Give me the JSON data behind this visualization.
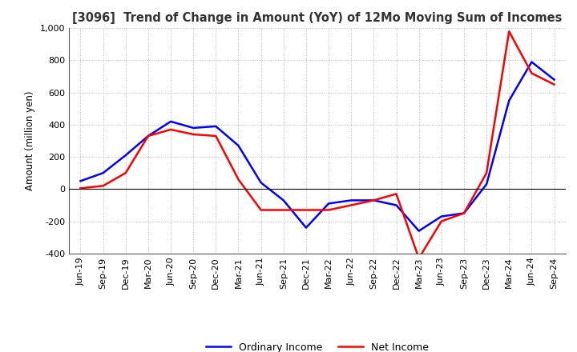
{
  "title": "[3096]  Trend of Change in Amount (YoY) of 12Mo Moving Sum of Incomes",
  "ylabel": "Amount (million yen)",
  "ylim": [
    -400,
    1000
  ],
  "yticks": [
    -400,
    -200,
    0,
    200,
    400,
    600,
    800,
    1000
  ],
  "background_color": "#ffffff",
  "grid_color": "#aaaaaa",
  "ordinary_income_color": "#0000ff",
  "net_income_color": "#ff0000",
  "x_labels": [
    "Jun-19",
    "Sep-19",
    "Dec-19",
    "Mar-20",
    "Jun-20",
    "Sep-20",
    "Dec-20",
    "Mar-21",
    "Jun-21",
    "Sep-21",
    "Dec-21",
    "Mar-22",
    "Jun-22",
    "Sep-22",
    "Dec-22",
    "Mar-23",
    "Jun-23",
    "Sep-23",
    "Dec-23",
    "Mar-24",
    "Jun-24",
    "Sep-24"
  ],
  "ordinary_income": [
    50,
    100,
    210,
    330,
    420,
    380,
    390,
    270,
    40,
    -70,
    -240,
    -90,
    -70,
    -70,
    -100,
    -260,
    -170,
    -150,
    30,
    550,
    790,
    680
  ],
  "net_income": [
    5,
    20,
    100,
    330,
    370,
    340,
    330,
    60,
    -130,
    -130,
    -130,
    -130,
    -100,
    -70,
    -30,
    -430,
    -200,
    -150,
    100,
    980,
    720,
    650
  ]
}
